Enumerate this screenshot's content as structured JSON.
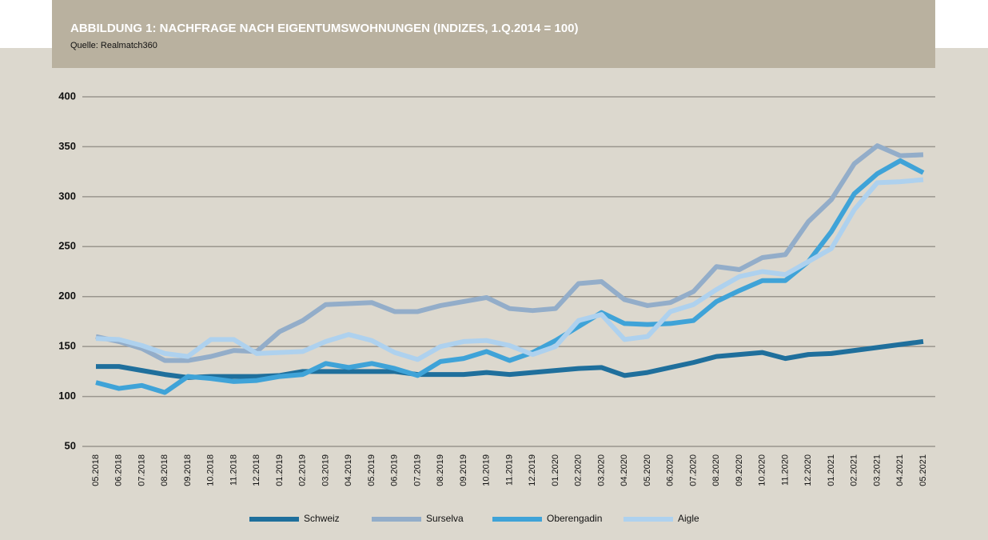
{
  "chart_data": {
    "type": "line",
    "title": "ABBILDUNG 1: NACHFRAGE NACH EIGENTUMSWOHNUNGEN (INDIZES, 1.Q.2014 = 100)",
    "subtitle": "Quelle: Realmatch360",
    "categories": [
      "05.2018",
      "06.2018",
      "07.2018",
      "08.2018",
      "09.2018",
      "10.2018",
      "11.2018",
      "12.2018",
      "01.2019",
      "02.2019",
      "03.2019",
      "04.2019",
      "05.2019",
      "06.2019",
      "07.2019",
      "08.2019",
      "09.2019",
      "10.2019",
      "11.2019",
      "12.2019",
      "01.2020",
      "02.2020",
      "03.2020",
      "04.2020",
      "05.2020",
      "06.2020",
      "07.2020",
      "08.2020",
      "09.2020",
      "10.2020",
      "11.2020",
      "12.2020",
      "01.2021",
      "02.2021",
      "03.2021",
      "04.2021",
      "05.2021"
    ],
    "series": [
      {
        "name": "Schweiz",
        "color": "#1f6f9c",
        "values": [
          130,
          130,
          126,
          122,
          119,
          120,
          120,
          120,
          121,
          125,
          125,
          125,
          125,
          125,
          122,
          122,
          122,
          124,
          122,
          124,
          126,
          128,
          129,
          121,
          124,
          129,
          134,
          140,
          142,
          144,
          138,
          142,
          143,
          146,
          149,
          152,
          155
        ]
      },
      {
        "name": "Surselva",
        "color": "#93adc9",
        "values": [
          160,
          155,
          148,
          136,
          136,
          140,
          146,
          145,
          165,
          176,
          192,
          193,
          194,
          185,
          185,
          191,
          195,
          199,
          188,
          186,
          188,
          213,
          215,
          197,
          191,
          194,
          205,
          230,
          227,
          239,
          242,
          275,
          297,
          333,
          351,
          341,
          342
        ]
      },
      {
        "name": "Oberengadin",
        "color": "#3fa3d8",
        "values": [
          114,
          108,
          111,
          104,
          120,
          118,
          115,
          116,
          120,
          122,
          133,
          129,
          133,
          128,
          121,
          135,
          138,
          145,
          136,
          144,
          156,
          170,
          184,
          173,
          172,
          173,
          176,
          195,
          206,
          216,
          216,
          235,
          265,
          303,
          323,
          336,
          324
        ]
      },
      {
        "name": "Aigle",
        "color": "#aed1ee",
        "values": [
          158,
          157,
          151,
          143,
          140,
          157,
          157,
          143,
          144,
          145,
          155,
          162,
          156,
          144,
          137,
          150,
          155,
          156,
          151,
          142,
          150,
          176,
          182,
          157,
          160,
          185,
          192,
          207,
          220,
          225,
          222,
          235,
          248,
          287,
          314,
          315,
          317
        ]
      }
    ],
    "ylim": [
      50,
      400
    ],
    "yticks": [
      50,
      100,
      150,
      200,
      250,
      300,
      350,
      400
    ],
    "grid": true,
    "legend": "bottom"
  }
}
